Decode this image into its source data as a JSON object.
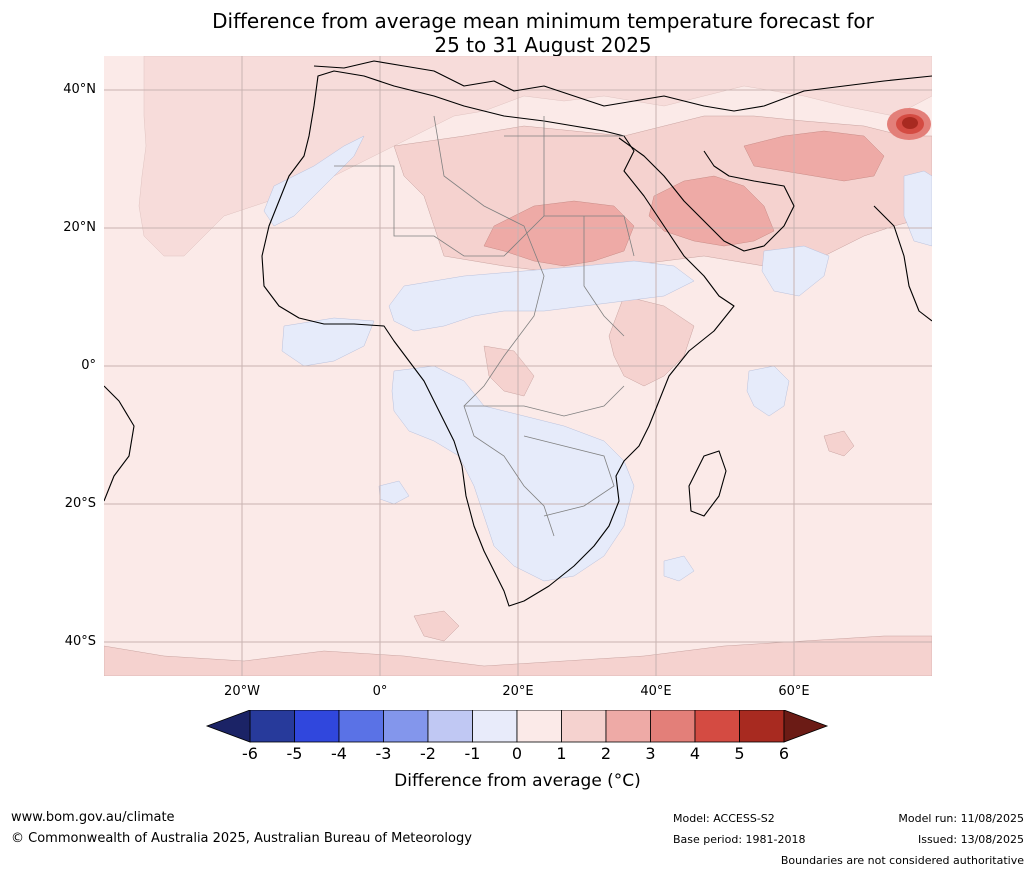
{
  "title": {
    "line1": "Difference from average mean minimum temperature forecast for",
    "line2": "25 to 31 August 2025"
  },
  "map": {
    "lat_labels": [
      "40°N",
      "20°N",
      "0°",
      "20°S",
      "40°S"
    ],
    "lon_labels": [
      "20°W",
      "0°",
      "20°E",
      "40°E",
      "60°E"
    ],
    "colors": {
      "ocean_background": "#fbeae8",
      "light_blue": "#e6ebfa",
      "pink_1_2": "#f5d2cf",
      "pink_2_3": "#eeaaa6",
      "red_3_4": "#e37f79",
      "red_4_5": "#d44b42",
      "red_5_6": "#a82a20"
    },
    "highlight_region": "Hot spot near Pakistan/Afghanistan with anomaly exceeding 5°C"
  },
  "colorbar": {
    "ticks": [
      "-6",
      "-5",
      "-4",
      "-3",
      "-2",
      "-1",
      "0",
      "1",
      "2",
      "3",
      "4",
      "5",
      "6"
    ],
    "colors": [
      "#273a9b",
      "#3047dd",
      "#5a72e6",
      "#8396ec",
      "#c0c8f3",
      "#e8ebfa",
      "#fbeae8",
      "#f5d2cf",
      "#eeaaa6",
      "#e37f79",
      "#d44b42",
      "#a82a20"
    ],
    "under_color": "#1b2366",
    "over_color": "#6b1b15",
    "label": "Difference from average (°C)"
  },
  "footer": {
    "website": "www.bom.gov.au/climate",
    "copyright": "© Commonwealth of Australia 2025, Australian Bureau of Meteorology",
    "model": "Model: ACCESS-S2",
    "base_period": "Base period: 1981-2018",
    "model_run": "Model run: 11/08/2025",
    "issued": "Issued: 13/08/2025",
    "disclaimer": "Boundaries are not considered authoritative"
  }
}
